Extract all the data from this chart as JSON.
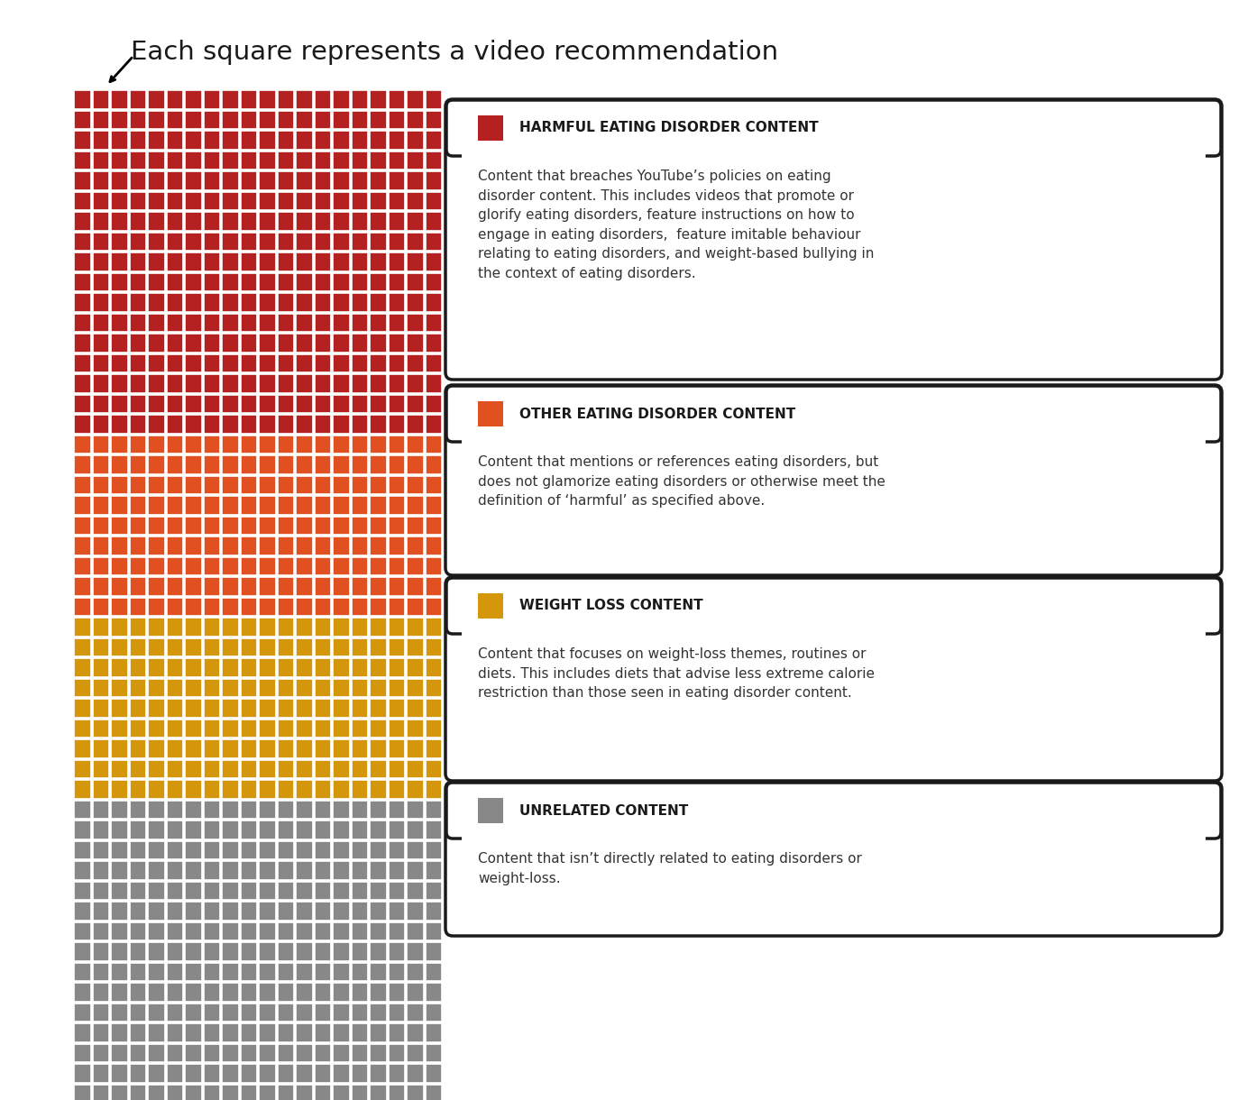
{
  "title": "Each square represents a video recommendation",
  "ncols": 20,
  "nrows": 50,
  "categories": [
    {
      "name": "HARMFUL EATING DISORDER CONTENT",
      "color": "#b52020",
      "rows": 17,
      "description": "Content that breaches YouTube’s policies on eating\ndisorder content. This includes videos that promote or\nglorify eating disorders, feature instructions on how to\nengage in eating disorders,  feature imitable behaviour\nrelating to eating disorders, and weight-based bullying in\nthe context of eating disorders."
    },
    {
      "name": "OTHER EATING DISORDER CONTENT",
      "color": "#e05020",
      "rows": 9,
      "description": "Content that mentions or references eating disorders, but\ndoes not glamorize eating disorders or otherwise meet the\ndefinition of ‘harmful’ as specified above."
    },
    {
      "name": "WEIGHT LOSS CONTENT",
      "color": "#d4960a",
      "rows": 9,
      "description": "Content that focuses on weight-loss themes, routines or\ndiets. This includes diets that advise less extreme calorie\nrestriction than those seen in eating disorder content."
    },
    {
      "name": "UNRELATED CONTENT",
      "color": "#888888",
      "rows": 15,
      "description": "Content that isn’t directly related to eating disorders or\nweight-loss."
    }
  ],
  "background_color": "#ffffff",
  "box_border_color": "#1a1a1a",
  "title_fontsize": 21,
  "label_fontsize": 11,
  "desc_fontsize": 11
}
